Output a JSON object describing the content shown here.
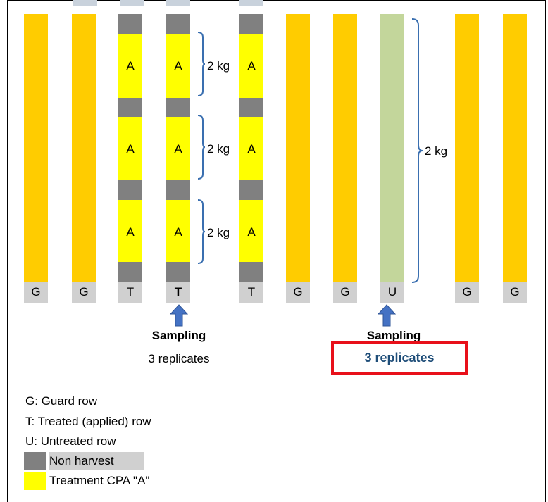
{
  "colors": {
    "non_harvest": "#808080",
    "treatment": "#ffff00",
    "guard": "#ffcc00",
    "untreated": "#c3d69b",
    "bracket": "#3a6fb0",
    "arrow": "#4472c4",
    "highlight_border": "#e8101a",
    "highlight_text": "#1f4e79",
    "label_bg": "#d0d0d0"
  },
  "rows": [
    {
      "label": "G"
    },
    {
      "label": "G"
    },
    {
      "label": "T"
    },
    {
      "label": "T"
    },
    {
      "label": "T"
    },
    {
      "label": "G"
    },
    {
      "label": "G"
    },
    {
      "label": "U"
    },
    {
      "label": "G"
    },
    {
      "label": "G"
    }
  ],
  "plot_label": "A",
  "kg_labels": [
    "2 kg",
    "2 kg",
    "2 kg"
  ],
  "untreated_kg_label": "2 kg",
  "sampling_treated": {
    "title": "Sampling",
    "subtitle": "3 replicates"
  },
  "sampling_untreated": {
    "title": "Sampling",
    "subtitle": "3 replicates"
  },
  "legend": {
    "guard": "G: Guard row",
    "treated": "T: Treated (applied) row",
    "untreated": "U: Untreated row",
    "non_harvest": "Non harvest",
    "treatment": "Treatment CPA \"A\""
  }
}
